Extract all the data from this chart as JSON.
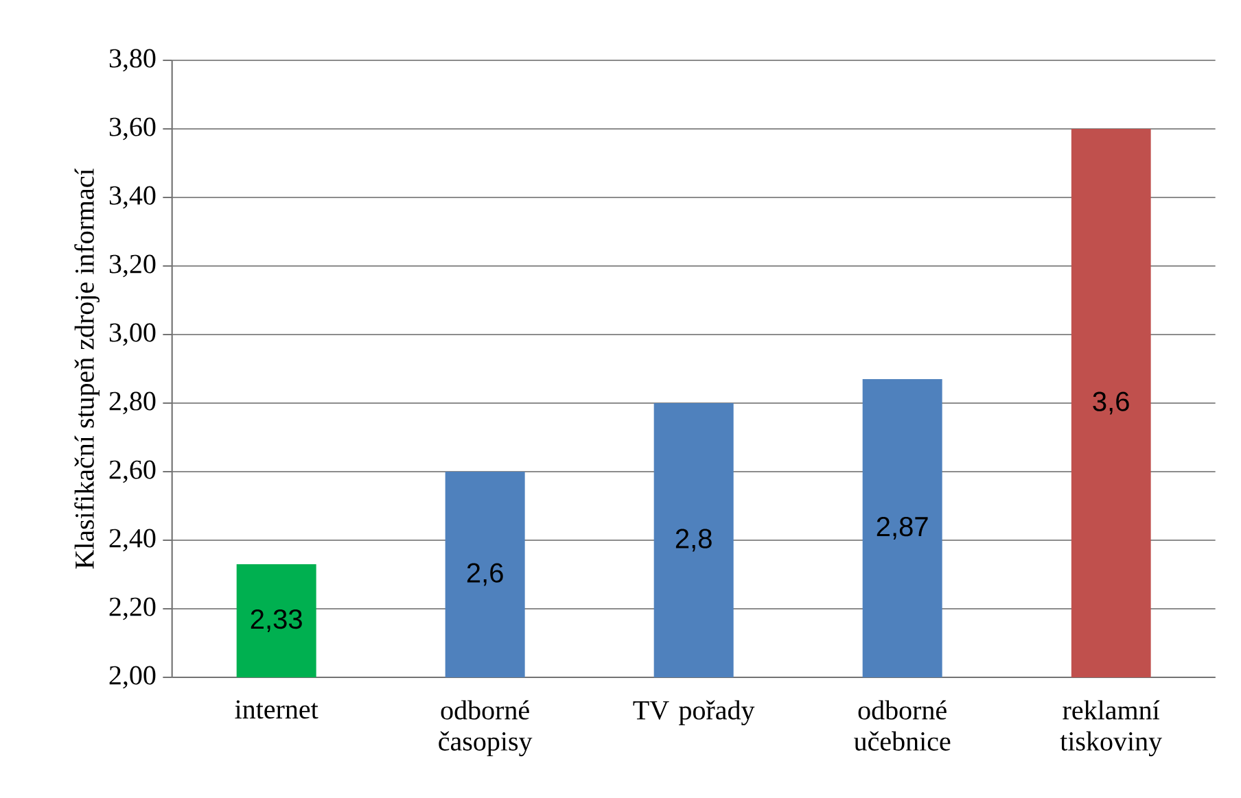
{
  "chart_data": {
    "type": "bar",
    "ylabel": "Klasifikační stupeň zdroje informací",
    "categories": [
      "internet",
      "odborné časopisy",
      "TV pořady",
      "odborné učebnice",
      "reklamní tiskoviny"
    ],
    "values": [
      2.33,
      2.6,
      2.8,
      2.87,
      3.6
    ],
    "colors": [
      "#00b050",
      "#4f81bd",
      "#4f81bd",
      "#4f81bd",
      "#c0504d"
    ],
    "value_labels": [
      "2,33",
      "2,6",
      "2,8",
      "2,87",
      "3,6"
    ],
    "ylim": [
      2,
      3.8
    ],
    "yticks": [
      {
        "value": 2,
        "label": "2,00"
      },
      {
        "value": 2.2,
        "label": "2,20"
      },
      {
        "value": 2.4,
        "label": "2,40"
      },
      {
        "value": 2.6,
        "label": "2,60"
      },
      {
        "value": 2.8,
        "label": "2,80"
      },
      {
        "value": 3,
        "label": "3,00"
      },
      {
        "value": 3.2,
        "label": "3,20"
      },
      {
        "value": 3.4,
        "label": "3,40"
      },
      {
        "value": 3.6,
        "label": "3,60"
      },
      {
        "value": 3.8,
        "label": "3,80"
      }
    ],
    "grid": "y"
  }
}
